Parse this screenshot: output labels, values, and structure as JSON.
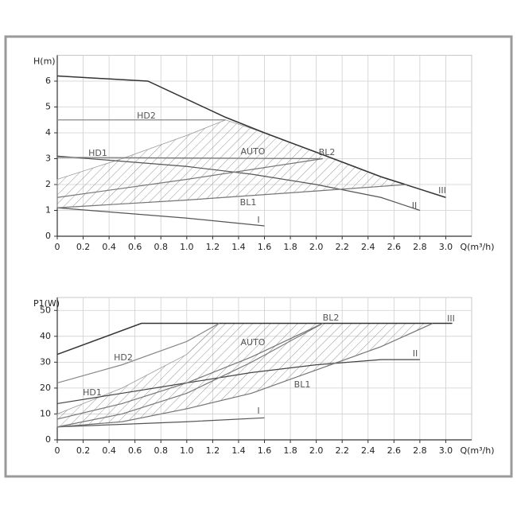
{
  "chart_data": [
    {
      "type": "line",
      "ylabel": "H(m)",
      "xlabel": "Q(m³/h)",
      "xlim": [
        0,
        3.2
      ],
      "ylim": [
        0,
        7
      ],
      "xticks": [
        0,
        0.2,
        0.4,
        0.6,
        0.8,
        {
          "value": 1,
          "label": "1.0"
        },
        1.2,
        1.4,
        1.6,
        1.8,
        {
          "value": 2,
          "label": "2.0"
        },
        2.2,
        2.4,
        2.6,
        2.8,
        {
          "value": 3,
          "label": "3.0"
        }
      ],
      "yticks": [
        0,
        1,
        2,
        3,
        4,
        5,
        6
      ],
      "grid": true,
      "series": [
        {
          "name": "I",
          "color": "#555555",
          "x": [
            0,
            0.5,
            1.0,
            1.6
          ],
          "values": [
            1.1,
            0.9,
            0.7,
            0.4
          ]
        },
        {
          "name": "II",
          "color": "#555555",
          "x": [
            0,
            0.5,
            1.0,
            1.5,
            2.0,
            2.5,
            2.8
          ],
          "values": [
            3.1,
            2.9,
            2.7,
            2.4,
            2.0,
            1.5,
            1.0
          ]
        },
        {
          "name": "III",
          "color": "#333333",
          "x": [
            0,
            0.7,
            1.3,
            1.6,
            2.0,
            2.5,
            3.0
          ],
          "values": [
            6.2,
            6.0,
            4.6,
            4.0,
            3.25,
            2.3,
            1.5
          ]
        },
        {
          "name": "HD1",
          "color": "#777777",
          "x": [
            0,
            2.05
          ],
          "values": [
            3.05,
            3.0
          ]
        },
        {
          "name": "HD2",
          "color": "#888888",
          "x": [
            0,
            1.3
          ],
          "values": [
            4.5,
            4.5
          ]
        },
        {
          "name": "BL1",
          "color": "#777777",
          "x": [
            0,
            1.0,
            2.0,
            2.7
          ],
          "values": [
            1.1,
            1.4,
            1.75,
            2.0
          ]
        },
        {
          "name": "BL2",
          "color": "#777777",
          "x": [
            0,
            1.0,
            2.05
          ],
          "values": [
            1.5,
            2.2,
            3.0
          ]
        }
      ],
      "region": {
        "label": "AUTO",
        "x": [
          0,
          0,
          0.5,
          1.0,
          1.3,
          1.6,
          2.0,
          2.5,
          2.7,
          2.0,
          1.0,
          0
        ],
        "values": [
          1.1,
          2.2,
          3.0,
          3.9,
          4.5,
          4.0,
          3.25,
          2.3,
          2.0,
          1.75,
          1.4,
          1.1
        ]
      }
    },
    {
      "type": "line",
      "ylabel": "P1(W)",
      "xlabel": "Q(m³/h)",
      "xlim": [
        0,
        3.2
      ],
      "ylim": [
        0,
        55
      ],
      "xticks": [
        0,
        0.2,
        0.4,
        0.6,
        0.8,
        {
          "value": 1,
          "label": "1.0"
        },
        1.2,
        1.4,
        1.6,
        1.8,
        {
          "value": 2,
          "label": "2.0"
        },
        2.2,
        2.4,
        2.6,
        2.8,
        {
          "value": 3,
          "label": "3.0"
        }
      ],
      "yticks": [
        0,
        10,
        20,
        30,
        40,
        50
      ],
      "grid": true,
      "series": [
        {
          "name": "I",
          "color": "#555555",
          "x": [
            0,
            0.5,
            1.0,
            1.6
          ],
          "values": [
            5,
            6,
            7,
            8.5
          ]
        },
        {
          "name": "II",
          "color": "#444444",
          "x": [
            0,
            0.5,
            1.0,
            1.5,
            2.0,
            2.5,
            2.8
          ],
          "values": [
            14,
            18,
            22,
            26,
            29,
            31,
            31
          ]
        },
        {
          "name": "III",
          "color": "#333333",
          "x": [
            0,
            0.65,
            3.05
          ],
          "values": [
            33,
            45,
            45
          ]
        },
        {
          "name": "HD1",
          "color": "#777777",
          "x": [
            0,
            0.5,
            1.0,
            1.5,
            2.05
          ],
          "values": [
            8,
            14,
            22,
            32,
            45
          ]
        },
        {
          "name": "HD2",
          "color": "#888888",
          "x": [
            0,
            0.5,
            1.0,
            1.25
          ],
          "values": [
            22,
            29,
            38,
            45
          ]
        },
        {
          "name": "BL1",
          "color": "#777777",
          "x": [
            0,
            0.5,
            1.0,
            1.5,
            2.0,
            2.5,
            2.9
          ],
          "values": [
            5,
            7,
            12,
            18,
            27,
            36,
            45
          ]
        },
        {
          "name": "BL2",
          "color": "#777777",
          "x": [
            0,
            0.5,
            1.0,
            1.5,
            2.05
          ],
          "values": [
            5,
            10,
            18,
            30,
            45
          ]
        }
      ],
      "region": {
        "label": "AUTO",
        "x": [
          0,
          0,
          0.5,
          1.0,
          1.25,
          2.9,
          2.5,
          2.0,
          1.5,
          1.0,
          0.5,
          0
        ],
        "values": [
          5,
          10,
          20,
          33,
          45,
          45,
          36,
          27,
          18,
          12,
          7,
          5
        ]
      }
    }
  ]
}
